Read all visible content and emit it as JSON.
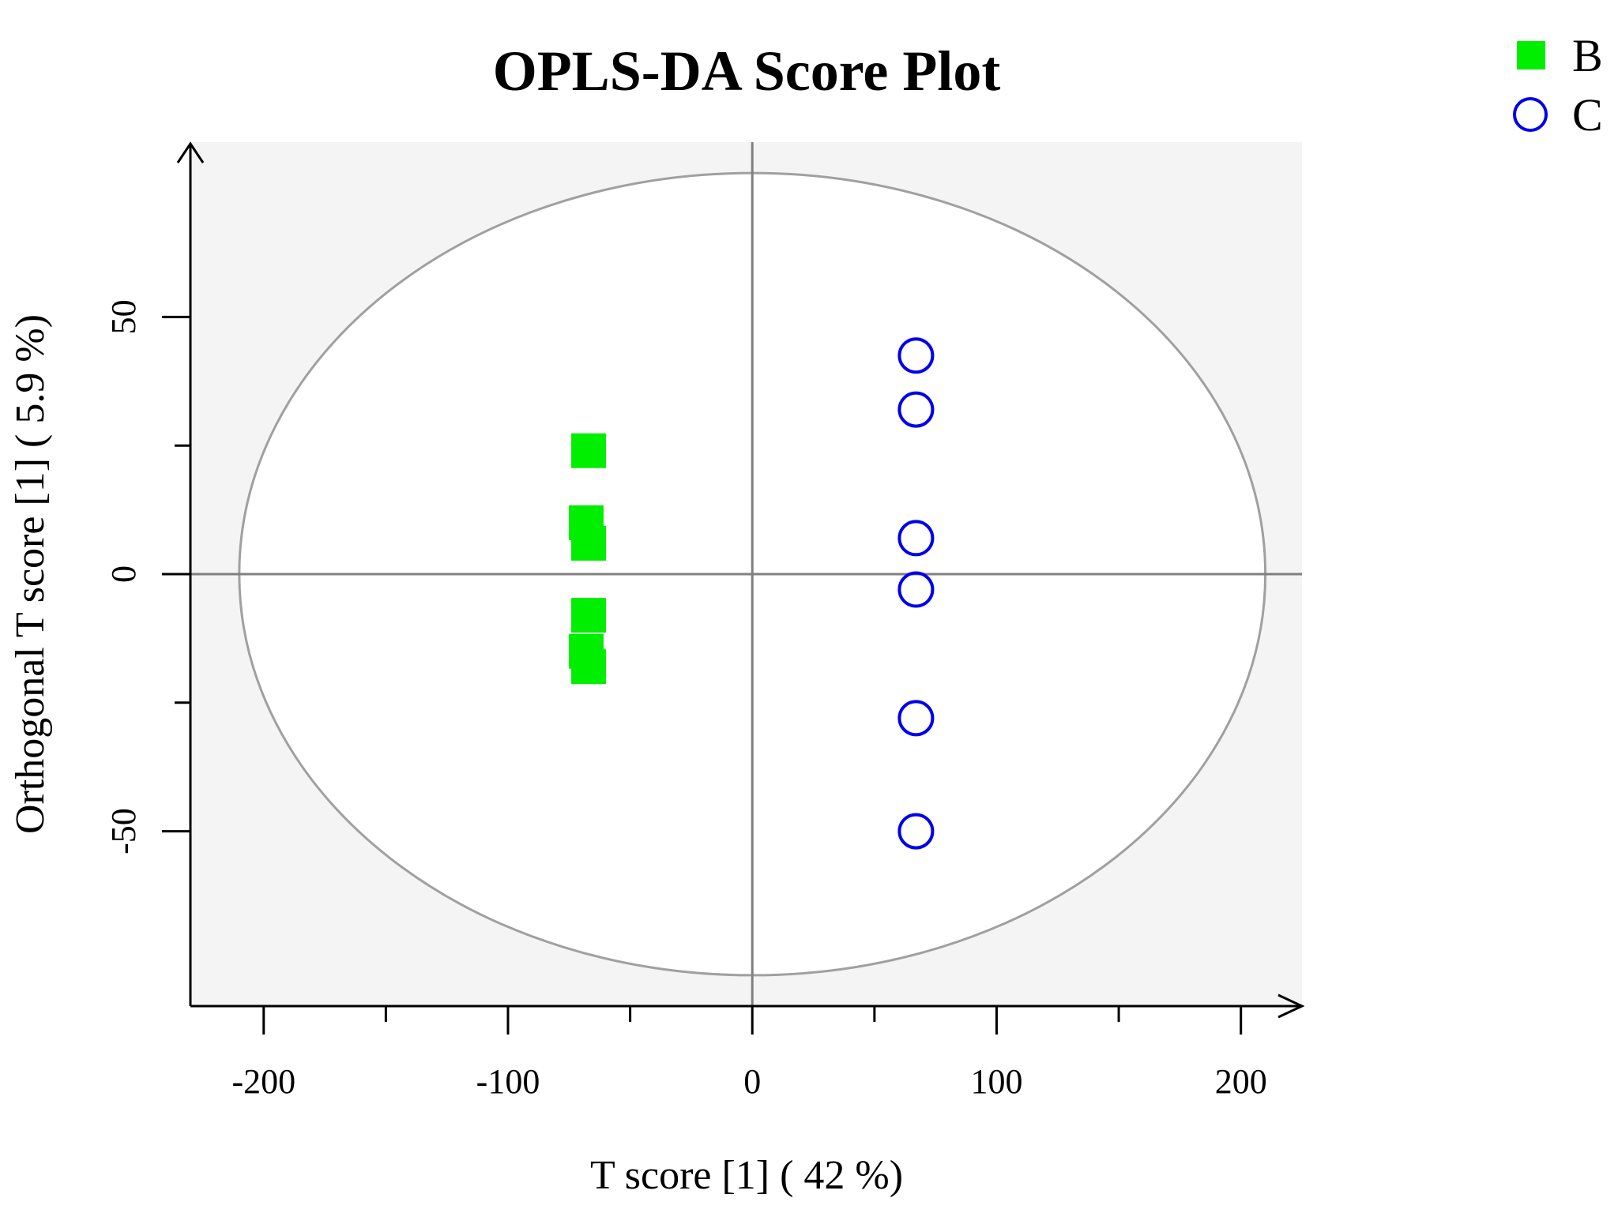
{
  "chart_data": {
    "type": "scatter",
    "title": "OPLS-DA Score Plot",
    "xlabel": "T score [1] ( 42 %)",
    "ylabel": "Orthogonal T score [1] ( 5.9 %)",
    "xlim": [
      -230,
      225
    ],
    "ylim": [
      -84,
      84
    ],
    "xticks": [
      -200,
      -100,
      0,
      100,
      200
    ],
    "xtick_labels": [
      "-200",
      "-100",
      "0",
      "100",
      "200"
    ],
    "xminor": [
      -150,
      -50,
      50,
      150
    ],
    "yticks": [
      -50,
      0,
      50
    ],
    "ytick_labels": [
      "-50",
      "0",
      "50"
    ],
    "yminor": [
      -25,
      25
    ],
    "grid": false,
    "background": "#f4f4f4",
    "ellipse": {
      "cx": 0,
      "cy": 0,
      "rx": 210,
      "ry": 78,
      "color": "#a0a0a0"
    },
    "reference_lines": {
      "x": 0,
      "y": 0,
      "color": "#808080"
    },
    "legend": {
      "placement": "top-right"
    },
    "series": [
      {
        "name": "B",
        "marker": "filled-square",
        "color": "#00ee00",
        "points": [
          {
            "x": -67,
            "y": 24
          },
          {
            "x": -68,
            "y": 10
          },
          {
            "x": -67,
            "y": 6
          },
          {
            "x": -67,
            "y": -8
          },
          {
            "x": -68,
            "y": -15
          },
          {
            "x": -67,
            "y": -18
          }
        ]
      },
      {
        "name": "C",
        "marker": "open-circle",
        "color": "#0000ee",
        "points": [
          {
            "x": 67,
            "y": 42.5
          },
          {
            "x": 67,
            "y": 32
          },
          {
            "x": 67,
            "y": 7
          },
          {
            "x": 67,
            "y": -3
          },
          {
            "x": 67,
            "y": -28
          },
          {
            "x": 67,
            "y": -50
          }
        ]
      }
    ]
  }
}
